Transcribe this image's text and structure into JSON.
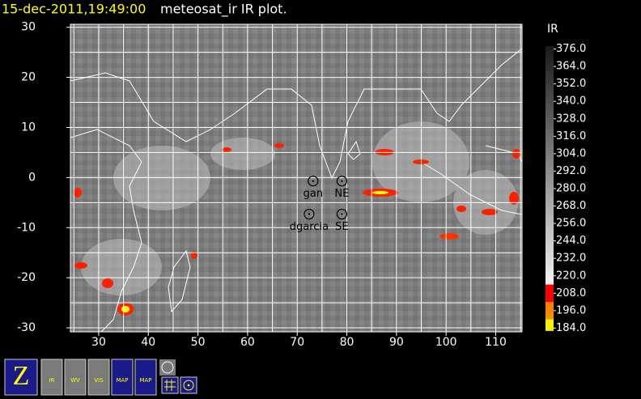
{
  "chart_data": {
    "type": "map",
    "timestamp": "15-dec-2011,19:49:00",
    "title": "meteosat_ir IR  plot.",
    "xlim": [
      24.3,
      115.3
    ],
    "ylim": [
      -30.8,
      30.6
    ],
    "xticks": [
      30,
      40,
      50,
      60,
      70,
      80,
      90,
      100,
      110
    ],
    "yticks": [
      -30,
      -20,
      -10,
      0,
      10,
      20,
      30
    ],
    "xgrid": [
      25,
      30,
      35,
      40,
      45,
      50,
      55,
      60,
      65,
      70,
      75,
      80,
      85,
      90,
      95,
      100,
      105,
      110,
      115
    ],
    "ygrid": [
      -30,
      -25,
      -20,
      -15,
      -10,
      -5,
      0,
      5,
      10,
      15,
      20,
      25,
      30
    ],
    "grid": true,
    "points": [
      {
        "name": "gan",
        "x": 73.2,
        "y": -0.7
      },
      {
        "name": "NE",
        "x": 79,
        "y": -0.7
      },
      {
        "name": "dgarcia",
        "x": 72.4,
        "y": -7.3
      },
      {
        "name": "SE",
        "x": 79,
        "y": -7.3
      }
    ],
    "colorbar": {
      "label": "IR",
      "lim": [
        182,
        378
      ],
      "ticks": [
        {
          "value": 376,
          "label": "376.0"
        },
        {
          "value": 364,
          "label": "364.0"
        },
        {
          "value": 352,
          "label": "352.0"
        },
        {
          "value": 340,
          "label": "340.0"
        },
        {
          "value": 328,
          "label": "328.0"
        },
        {
          "value": 316,
          "label": "316.0"
        },
        {
          "value": 304,
          "label": "304.0"
        },
        {
          "value": 292,
          "label": "292.0"
        },
        {
          "value": 280,
          "label": "280.0"
        },
        {
          "value": 268,
          "label": "268.0"
        },
        {
          "value": 256,
          "label": "256.0"
        },
        {
          "value": 244,
          "label": "244.0"
        },
        {
          "value": 232,
          "label": "232.0"
        },
        {
          "value": 220,
          "label": "220.0"
        },
        {
          "value": 208,
          "label": "208.0"
        },
        {
          "value": 196,
          "label": "196.0"
        },
        {
          "value": 184,
          "label": "184.0"
        }
      ],
      "stops": [
        {
          "value": 378,
          "color": "#1a1a1a"
        },
        {
          "value": 214,
          "color": "#f4f4f4"
        },
        {
          "value": 214,
          "color": "#ff0000"
        },
        {
          "value": 202,
          "color": "#ff0000"
        },
        {
          "value": 202,
          "color": "#ff8000"
        },
        {
          "value": 190,
          "color": "#ff9900"
        },
        {
          "value": 190,
          "color": "#ffff00"
        },
        {
          "value": 182,
          "color": "#ffff00"
        }
      ]
    }
  },
  "toolbar": {
    "buttons": [
      "IR",
      "WV",
      "VIS",
      "MAP",
      "MAP"
    ]
  }
}
